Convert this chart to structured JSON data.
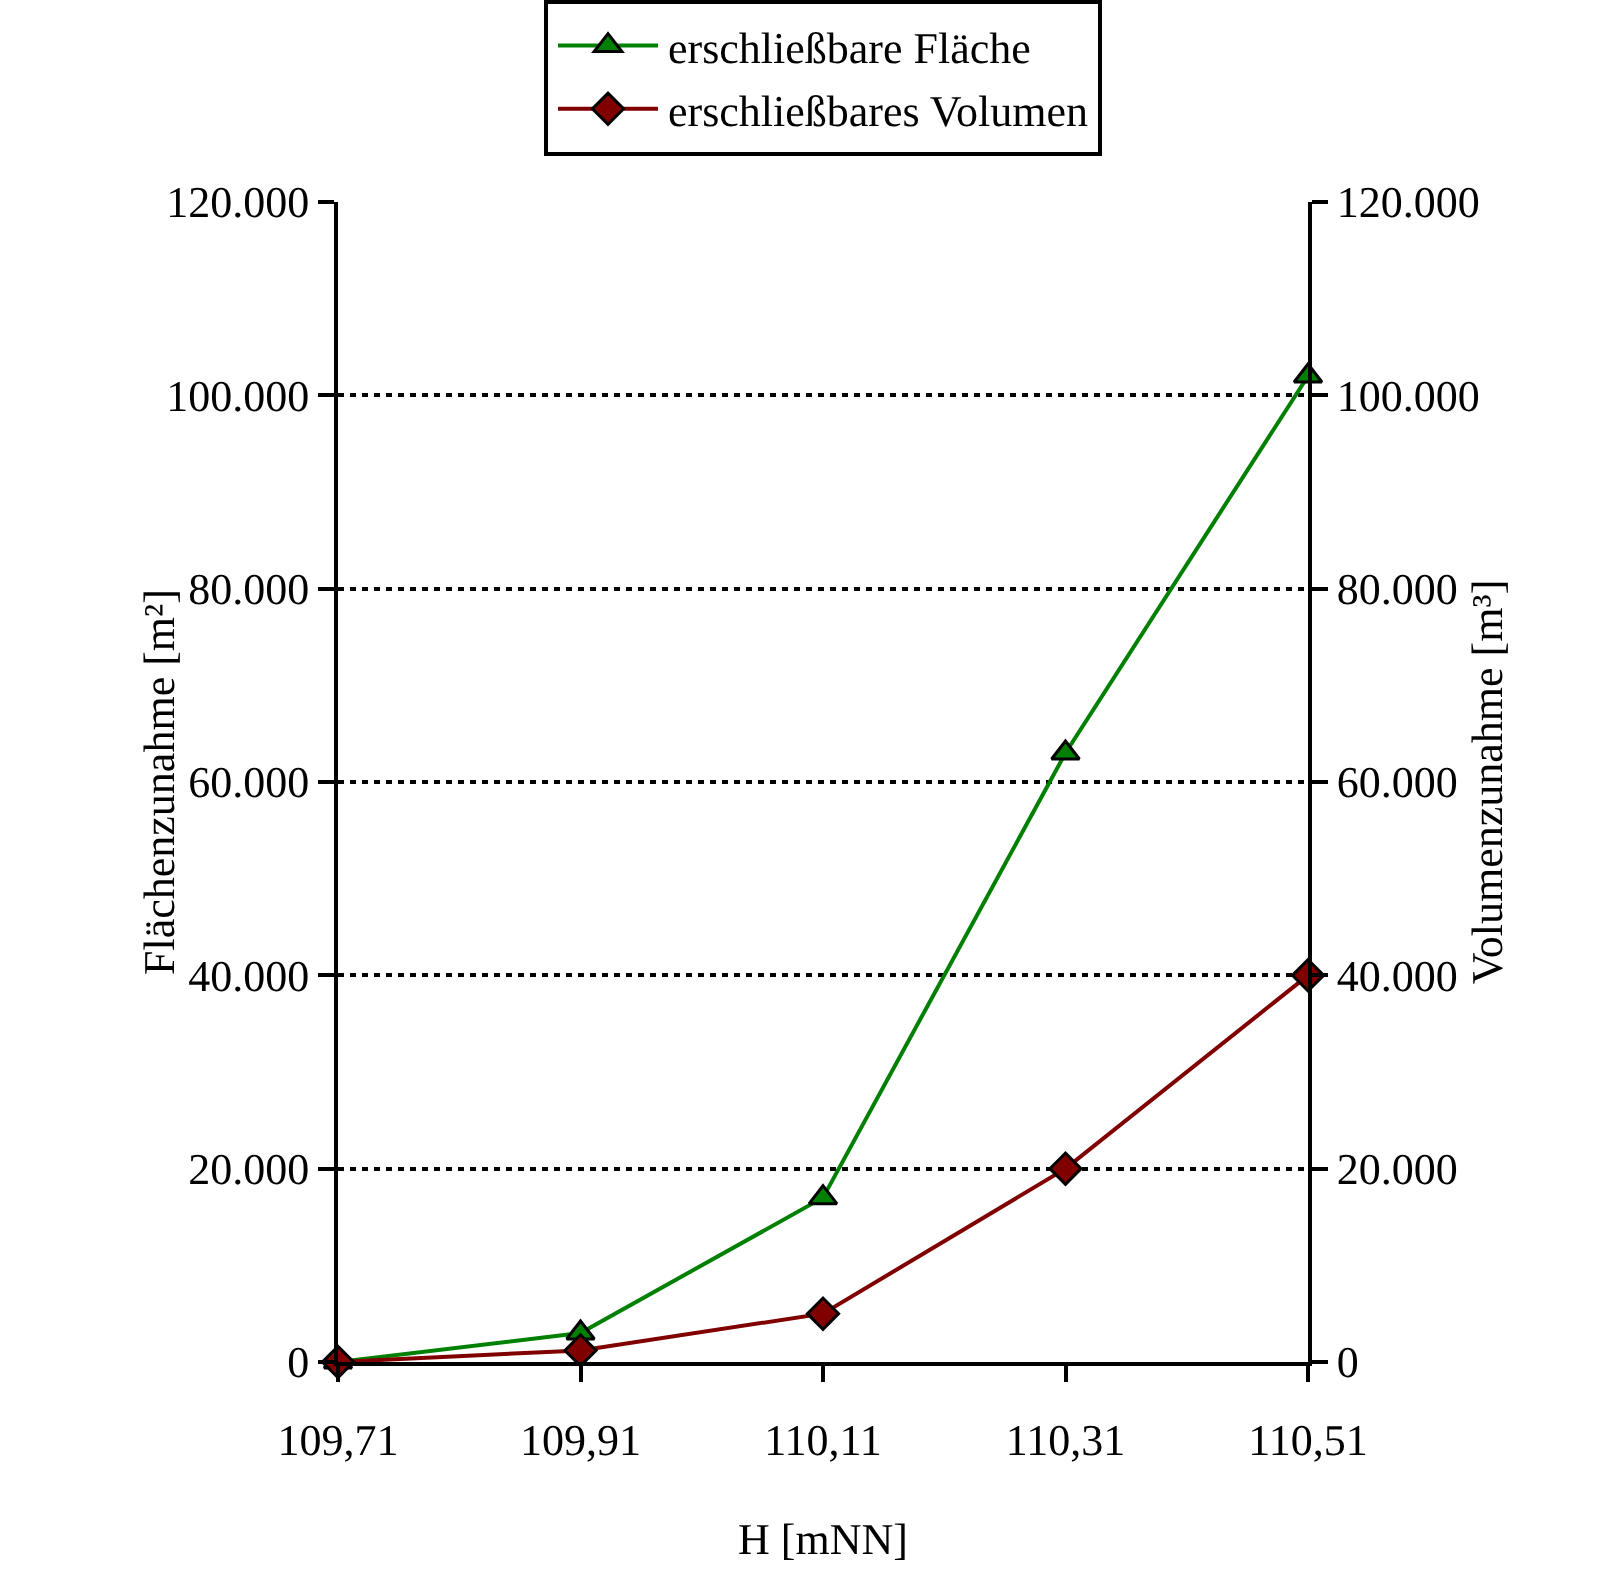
{
  "chart_data": {
    "type": "line",
    "xlabel": "H [mNN]",
    "ylabel": "Flächenzunahme [m²]",
    "y2label": "Volumenzunahme [m³]",
    "x": [
      109.71,
      109.91,
      110.11,
      110.31,
      110.51
    ],
    "series": [
      {
        "name": "erschließbare Fläche",
        "color": "#008000",
        "marker": "triangle",
        "values": [
          0,
          3000,
          17000,
          63000,
          102000
        ]
      },
      {
        "name": "erschließbares Volumen",
        "color": "#800000",
        "marker": "diamond",
        "axis": "y2",
        "values": [
          0,
          1200,
          5000,
          20000,
          40000
        ]
      }
    ],
    "xlim": [
      109.71,
      110.51
    ],
    "xticks": [
      {
        "value": 109.71,
        "label": "109,71"
      },
      {
        "value": 109.91,
        "label": "109,91"
      },
      {
        "value": 110.11,
        "label": "110,11"
      },
      {
        "value": 110.31,
        "label": "110,31"
      },
      {
        "value": 110.51,
        "label": "110,51"
      }
    ],
    "ylim": [
      0,
      120000
    ],
    "yticks": [
      0,
      {
        "value": 20000,
        "label": "20.000"
      },
      {
        "value": 40000,
        "label": "40.000"
      },
      {
        "value": 60000,
        "label": "60.000"
      },
      {
        "value": 80000,
        "label": "80.000"
      },
      {
        "value": 100000,
        "label": "100.000"
      },
      {
        "value": 120000,
        "label": "120.000"
      }
    ],
    "y2lim": [
      0,
      120000
    ],
    "y2ticks": [
      0,
      {
        "value": 20000,
        "label": "20.000"
      },
      {
        "value": 40000,
        "label": "40.000"
      },
      {
        "value": 60000,
        "label": "60.000"
      },
      {
        "value": 80000,
        "label": "80.000"
      },
      {
        "value": 100000,
        "label": "100.000"
      },
      {
        "value": 120000,
        "label": "120.000"
      }
    ],
    "grid": "y",
    "legend": "top",
    "line_style": "solid"
  }
}
